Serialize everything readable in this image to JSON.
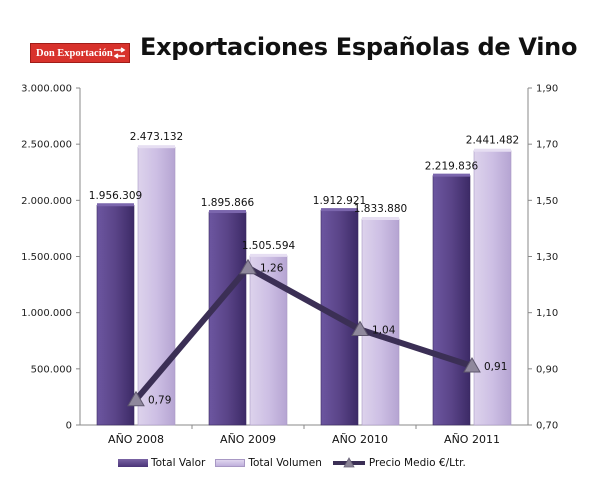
{
  "header": {
    "logo_text": "Don Exportación",
    "title": "Exportaciones Españolas de Vino"
  },
  "colors": {
    "logo_red": "#d8322c",
    "valor_bar": "#5a4488",
    "volumen_bar": "#cdbfe4",
    "precio_line": "#3b2f55"
  },
  "chart_data": {
    "type": "bar",
    "categories": [
      "AÑO 2008",
      "AÑO 2009",
      "AÑO 2010",
      "AÑO 2011"
    ],
    "series": [
      {
        "name": "Total Valor",
        "type": "bar",
        "axis": "left",
        "values": [
          1956309,
          1895866,
          1912921,
          2219836
        ],
        "labels": [
          "1.956.309",
          "1.895.866",
          "1.912.921",
          "2.219.836"
        ]
      },
      {
        "name": "Total Volumen",
        "type": "bar",
        "axis": "left",
        "values": [
          2473132,
          1505594,
          1833880,
          2441482
        ],
        "labels": [
          "2.473.132",
          "1.505.594",
          "1.833.880",
          "2.441.482"
        ]
      },
      {
        "name": "Precio Medio €/Ltr.",
        "type": "line",
        "axis": "right",
        "values": [
          0.79,
          1.26,
          1.04,
          0.91
        ],
        "labels": [
          "0,79",
          "1,26",
          "1,04",
          "0,91"
        ]
      }
    ],
    "y_left": {
      "min": 0,
      "max": 3000000,
      "ticks": [
        0,
        500000,
        1000000,
        1500000,
        2000000,
        2500000,
        3000000
      ],
      "tick_labels": [
        "0",
        "500.000",
        "1.000.000",
        "1.500.000",
        "2.000.000",
        "2.500.000",
        "3.000.000"
      ]
    },
    "y_right": {
      "min": 0.7,
      "max": 1.9,
      "ticks": [
        0.7,
        0.9,
        1.1,
        1.3,
        1.5,
        1.7,
        1.9
      ],
      "tick_labels": [
        "0,70",
        "0,90",
        "1,10",
        "1,30",
        "1,50",
        "1,70",
        "1,90"
      ]
    },
    "grid": false,
    "legend_position": "bottom"
  },
  "legend": {
    "items": [
      "Total Valor",
      "Total Volumen",
      "Precio Medio €/Ltr."
    ]
  }
}
